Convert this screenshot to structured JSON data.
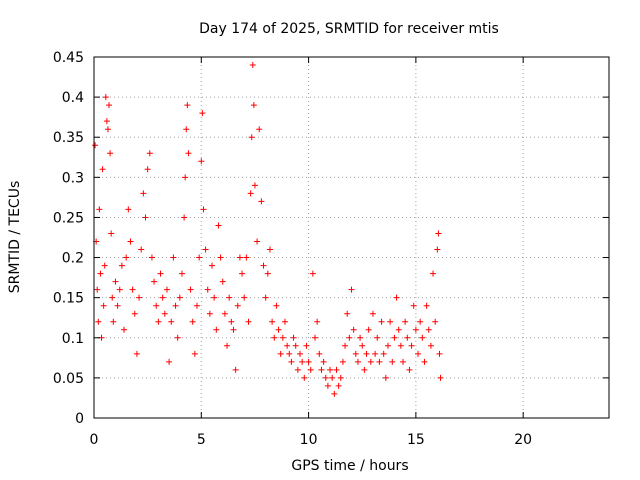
{
  "chart_data": {
    "type": "scatter",
    "title": "Day 174 of 2025, SRMTID for receiver mtis",
    "xlabel": "GPS time / hours",
    "ylabel": "SRMTID / TECUs",
    "xlim": [
      0,
      24
    ],
    "ylim": [
      0,
      0.45
    ],
    "xticks": [
      0,
      5,
      10,
      15,
      20
    ],
    "xtick_labels": [
      "0",
      "5",
      "10",
      "15",
      "20"
    ],
    "yticks": [
      0,
      0.05,
      0.1,
      0.15,
      0.2,
      0.25,
      0.3,
      0.35,
      0.4,
      0.45
    ],
    "ytick_labels": [
      "0",
      "0.05",
      "0.1",
      "0.15",
      "0.2",
      "0.25",
      "0.3",
      "0.35",
      "0.4",
      "0.45"
    ],
    "grid": true,
    "marker": "+",
    "color": "#ff0000",
    "series": [
      {
        "name": "SRMTID",
        "points": [
          [
            0.05,
            0.34
          ],
          [
            0.1,
            0.22
          ],
          [
            0.15,
            0.16
          ],
          [
            0.2,
            0.12
          ],
          [
            0.25,
            0.26
          ],
          [
            0.3,
            0.18
          ],
          [
            0.35,
            0.1
          ],
          [
            0.4,
            0.31
          ],
          [
            0.45,
            0.14
          ],
          [
            0.5,
            0.19
          ],
          [
            0.55,
            0.4
          ],
          [
            0.6,
            0.37
          ],
          [
            0.65,
            0.36
          ],
          [
            0.7,
            0.39
          ],
          [
            0.75,
            0.33
          ],
          [
            0.8,
            0.23
          ],
          [
            0.85,
            0.15
          ],
          [
            0.9,
            0.12
          ],
          [
            1.0,
            0.17
          ],
          [
            1.1,
            0.14
          ],
          [
            1.2,
            0.16
          ],
          [
            1.3,
            0.19
          ],
          [
            1.4,
            0.11
          ],
          [
            1.5,
            0.2
          ],
          [
            1.6,
            0.26
          ],
          [
            1.7,
            0.22
          ],
          [
            1.8,
            0.16
          ],
          [
            1.9,
            0.13
          ],
          [
            2.0,
            0.08
          ],
          [
            2.1,
            0.15
          ],
          [
            2.2,
            0.21
          ],
          [
            2.3,
            0.28
          ],
          [
            2.4,
            0.25
          ],
          [
            2.5,
            0.31
          ],
          [
            2.6,
            0.33
          ],
          [
            2.7,
            0.2
          ],
          [
            2.8,
            0.17
          ],
          [
            2.9,
            0.14
          ],
          [
            3.0,
            0.12
          ],
          [
            3.1,
            0.18
          ],
          [
            3.2,
            0.15
          ],
          [
            3.3,
            0.13
          ],
          [
            3.4,
            0.16
          ],
          [
            3.5,
            0.07
          ],
          [
            3.6,
            0.12
          ],
          [
            3.7,
            0.2
          ],
          [
            3.8,
            0.14
          ],
          [
            3.9,
            0.1
          ],
          [
            4.0,
            0.15
          ],
          [
            4.1,
            0.18
          ],
          [
            4.2,
            0.25
          ],
          [
            4.25,
            0.3
          ],
          [
            4.3,
            0.36
          ],
          [
            4.35,
            0.39
          ],
          [
            4.4,
            0.33
          ],
          [
            4.5,
            0.16
          ],
          [
            4.6,
            0.12
          ],
          [
            4.7,
            0.08
          ],
          [
            4.8,
            0.14
          ],
          [
            4.9,
            0.2
          ],
          [
            5.0,
            0.32
          ],
          [
            5.05,
            0.38
          ],
          [
            5.1,
            0.26
          ],
          [
            5.2,
            0.21
          ],
          [
            5.3,
            0.16
          ],
          [
            5.4,
            0.13
          ],
          [
            5.5,
            0.19
          ],
          [
            5.6,
            0.15
          ],
          [
            5.7,
            0.11
          ],
          [
            5.8,
            0.24
          ],
          [
            5.9,
            0.2
          ],
          [
            6.0,
            0.17
          ],
          [
            6.1,
            0.13
          ],
          [
            6.2,
            0.09
          ],
          [
            6.3,
            0.15
          ],
          [
            6.4,
            0.12
          ],
          [
            6.5,
            0.11
          ],
          [
            6.6,
            0.06
          ],
          [
            6.7,
            0.14
          ],
          [
            6.8,
            0.2
          ],
          [
            6.9,
            0.18
          ],
          [
            7.0,
            0.15
          ],
          [
            7.1,
            0.2
          ],
          [
            7.2,
            0.12
          ],
          [
            7.3,
            0.28
          ],
          [
            7.35,
            0.35
          ],
          [
            7.4,
            0.44
          ],
          [
            7.45,
            0.39
          ],
          [
            7.5,
            0.29
          ],
          [
            7.6,
            0.22
          ],
          [
            7.7,
            0.36
          ],
          [
            7.8,
            0.27
          ],
          [
            7.9,
            0.19
          ],
          [
            8.0,
            0.15
          ],
          [
            8.1,
            0.18
          ],
          [
            8.2,
            0.21
          ],
          [
            8.3,
            0.12
          ],
          [
            8.4,
            0.1
          ],
          [
            8.5,
            0.14
          ],
          [
            8.6,
            0.11
          ],
          [
            8.7,
            0.08
          ],
          [
            8.8,
            0.1
          ],
          [
            8.9,
            0.12
          ],
          [
            9.0,
            0.09
          ],
          [
            9.1,
            0.08
          ],
          [
            9.2,
            0.07
          ],
          [
            9.3,
            0.1
          ],
          [
            9.4,
            0.09
          ],
          [
            9.5,
            0.06
          ],
          [
            9.6,
            0.08
          ],
          [
            9.7,
            0.07
          ],
          [
            9.8,
            0.05
          ],
          [
            9.9,
            0.09
          ],
          [
            10.0,
            0.07
          ],
          [
            10.1,
            0.06
          ],
          [
            10.2,
            0.18
          ],
          [
            10.3,
            0.1
          ],
          [
            10.4,
            0.12
          ],
          [
            10.5,
            0.08
          ],
          [
            10.6,
            0.06
          ],
          [
            10.7,
            0.07
          ],
          [
            10.8,
            0.05
          ],
          [
            10.9,
            0.04
          ],
          [
            11.0,
            0.06
          ],
          [
            11.1,
            0.05
          ],
          [
            11.2,
            0.03
          ],
          [
            11.3,
            0.06
          ],
          [
            11.4,
            0.04
          ],
          [
            11.5,
            0.05
          ],
          [
            11.6,
            0.07
          ],
          [
            11.7,
            0.09
          ],
          [
            11.8,
            0.13
          ],
          [
            11.9,
            0.1
          ],
          [
            12.0,
            0.16
          ],
          [
            12.1,
            0.11
          ],
          [
            12.2,
            0.08
          ],
          [
            12.3,
            0.07
          ],
          [
            12.4,
            0.1
          ],
          [
            12.5,
            0.09
          ],
          [
            12.6,
            0.06
          ],
          [
            12.7,
            0.08
          ],
          [
            12.8,
            0.11
          ],
          [
            12.9,
            0.07
          ],
          [
            13.0,
            0.13
          ],
          [
            13.1,
            0.08
          ],
          [
            13.2,
            0.1
          ],
          [
            13.3,
            0.07
          ],
          [
            13.4,
            0.12
          ],
          [
            13.5,
            0.08
          ],
          [
            13.6,
            0.05
          ],
          [
            13.7,
            0.09
          ],
          [
            13.8,
            0.12
          ],
          [
            13.9,
            0.07
          ],
          [
            14.0,
            0.1
          ],
          [
            14.1,
            0.15
          ],
          [
            14.2,
            0.11
          ],
          [
            14.3,
            0.09
          ],
          [
            14.4,
            0.07
          ],
          [
            14.5,
            0.12
          ],
          [
            14.6,
            0.1
          ],
          [
            14.7,
            0.06
          ],
          [
            14.8,
            0.09
          ],
          [
            14.9,
            0.14
          ],
          [
            15.0,
            0.11
          ],
          [
            15.1,
            0.08
          ],
          [
            15.2,
            0.12
          ],
          [
            15.3,
            0.1
          ],
          [
            15.4,
            0.07
          ],
          [
            15.5,
            0.14
          ],
          [
            15.6,
            0.11
          ],
          [
            15.7,
            0.09
          ],
          [
            15.8,
            0.18
          ],
          [
            15.9,
            0.12
          ],
          [
            16.0,
            0.21
          ],
          [
            16.05,
            0.23
          ],
          [
            16.1,
            0.08
          ],
          [
            16.15,
            0.05
          ]
        ]
      }
    ]
  }
}
